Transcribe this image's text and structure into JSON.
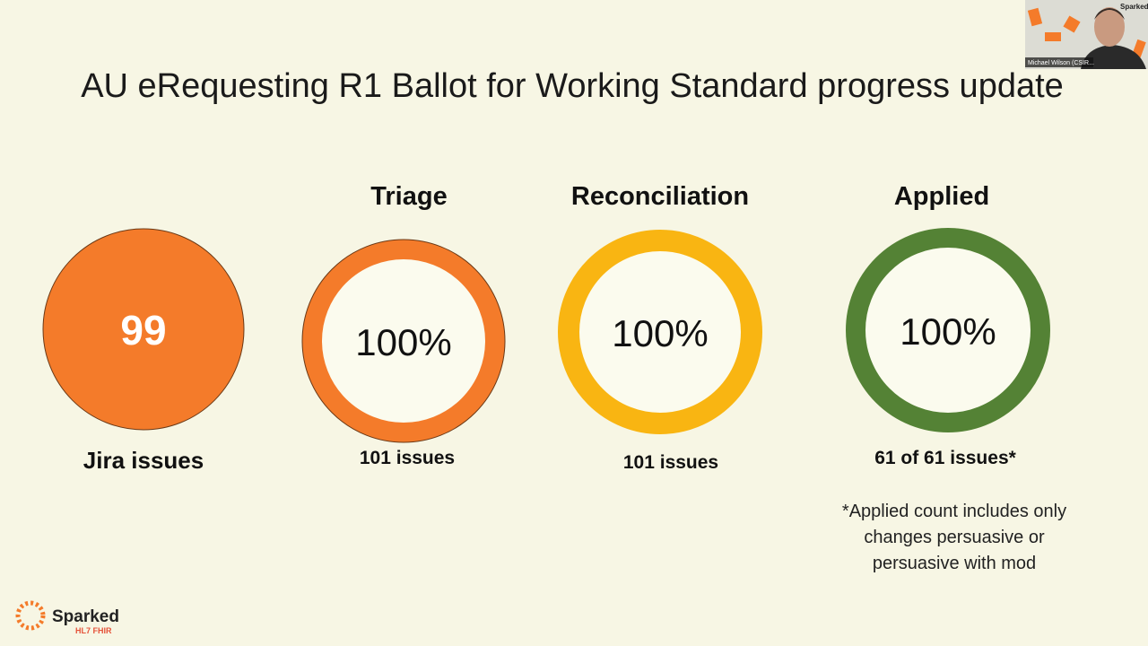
{
  "slide": {
    "title": "AU eRequesting R1 Ballot for Working Standard progress update",
    "panels": [
      {
        "value": "99",
        "caption": "Jira issues"
      },
      {
        "heading": "Triage",
        "value": "100%",
        "caption": "101 issues"
      },
      {
        "heading": "Reconciliation",
        "value": "100%",
        "caption": "101 issues"
      },
      {
        "heading": "Applied",
        "value": "100%",
        "caption": "61 of 61 issues*"
      }
    ],
    "note": [
      "*Applied count includes only",
      "changes persuasive or",
      "persuasive with mod"
    ],
    "logo": {
      "name": "Sparked",
      "sub": "HL7 FHIR"
    }
  },
  "video": {
    "participant": "Michael Wilson (CSIR...",
    "badge": "Sparked"
  }
}
